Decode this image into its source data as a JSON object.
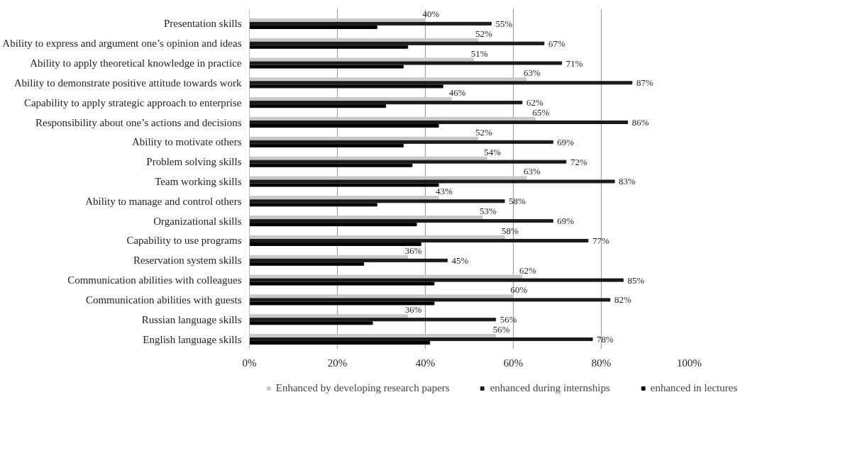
{
  "chart_data": {
    "type": "bar",
    "orientation": "horizontal",
    "categories": [
      "Presentation skills",
      "Ability to express and argument one’s opinion and ideas",
      "Ability to apply theoretical knowledge in practice",
      "Ability to demonstrate positive attitude towards work",
      "Capability to apply strategic approach to enterprise",
      "Responsibility about one’s actions and decisions",
      "Ability to motivate others",
      "Problem solving skills",
      "Team working skills",
      "Ability to manage and control others",
      "Organizational skills",
      "Capability to use programs",
      "Reservation system skills",
      "Communication abilities with colleagues",
      "Communication abilities with guests",
      "Russian language skills",
      "English language skills"
    ],
    "series": [
      {
        "name": "Enhanced by developing research papers",
        "color": "#c8c8c8",
        "values": [
          40,
          52,
          51,
          63,
          46,
          65,
          52,
          54,
          63,
          43,
          53,
          58,
          36,
          62,
          60,
          36,
          56
        ],
        "value_labels": [
          "40%",
          "52%",
          "51%",
          "63%",
          "46%",
          "65%",
          "52%",
          "54%",
          "63%",
          "43%",
          "53%",
          "58%",
          "36%",
          "62%",
          "60%",
          "36%",
          "56%"
        ]
      },
      {
        "name": "enhanced during internships",
        "color": "#1a1a1a",
        "values": [
          55,
          67,
          71,
          87,
          62,
          86,
          69,
          72,
          83,
          58,
          69,
          77,
          45,
          85,
          82,
          56,
          78
        ],
        "value_labels": [
          "55%",
          "67%",
          "71%",
          "87%",
          "62%",
          "86%",
          "69%",
          "72%",
          "83%",
          "58%",
          "69%",
          "77%",
          "45%",
          "85%",
          "82%",
          "56%",
          "78%"
        ]
      },
      {
        "name": "enhanced in lectures",
        "color": "#000000",
        "values": [
          29,
          36,
          35,
          44,
          31,
          43,
          35,
          37,
          43,
          29,
          38,
          39,
          26,
          42,
          42,
          28,
          41
        ]
      }
    ],
    "xlim": [
      0,
      100
    ],
    "xticks": [
      {
        "value": 0,
        "label": "0%"
      },
      {
        "value": 20,
        "label": "20%"
      },
      {
        "value": 40,
        "label": "40%"
      },
      {
        "value": 60,
        "label": "60%"
      },
      {
        "value": 80,
        "label": "80%"
      },
      {
        "value": 100,
        "label": "100%"
      }
    ],
    "grid": "x",
    "legend": "bottom"
  }
}
